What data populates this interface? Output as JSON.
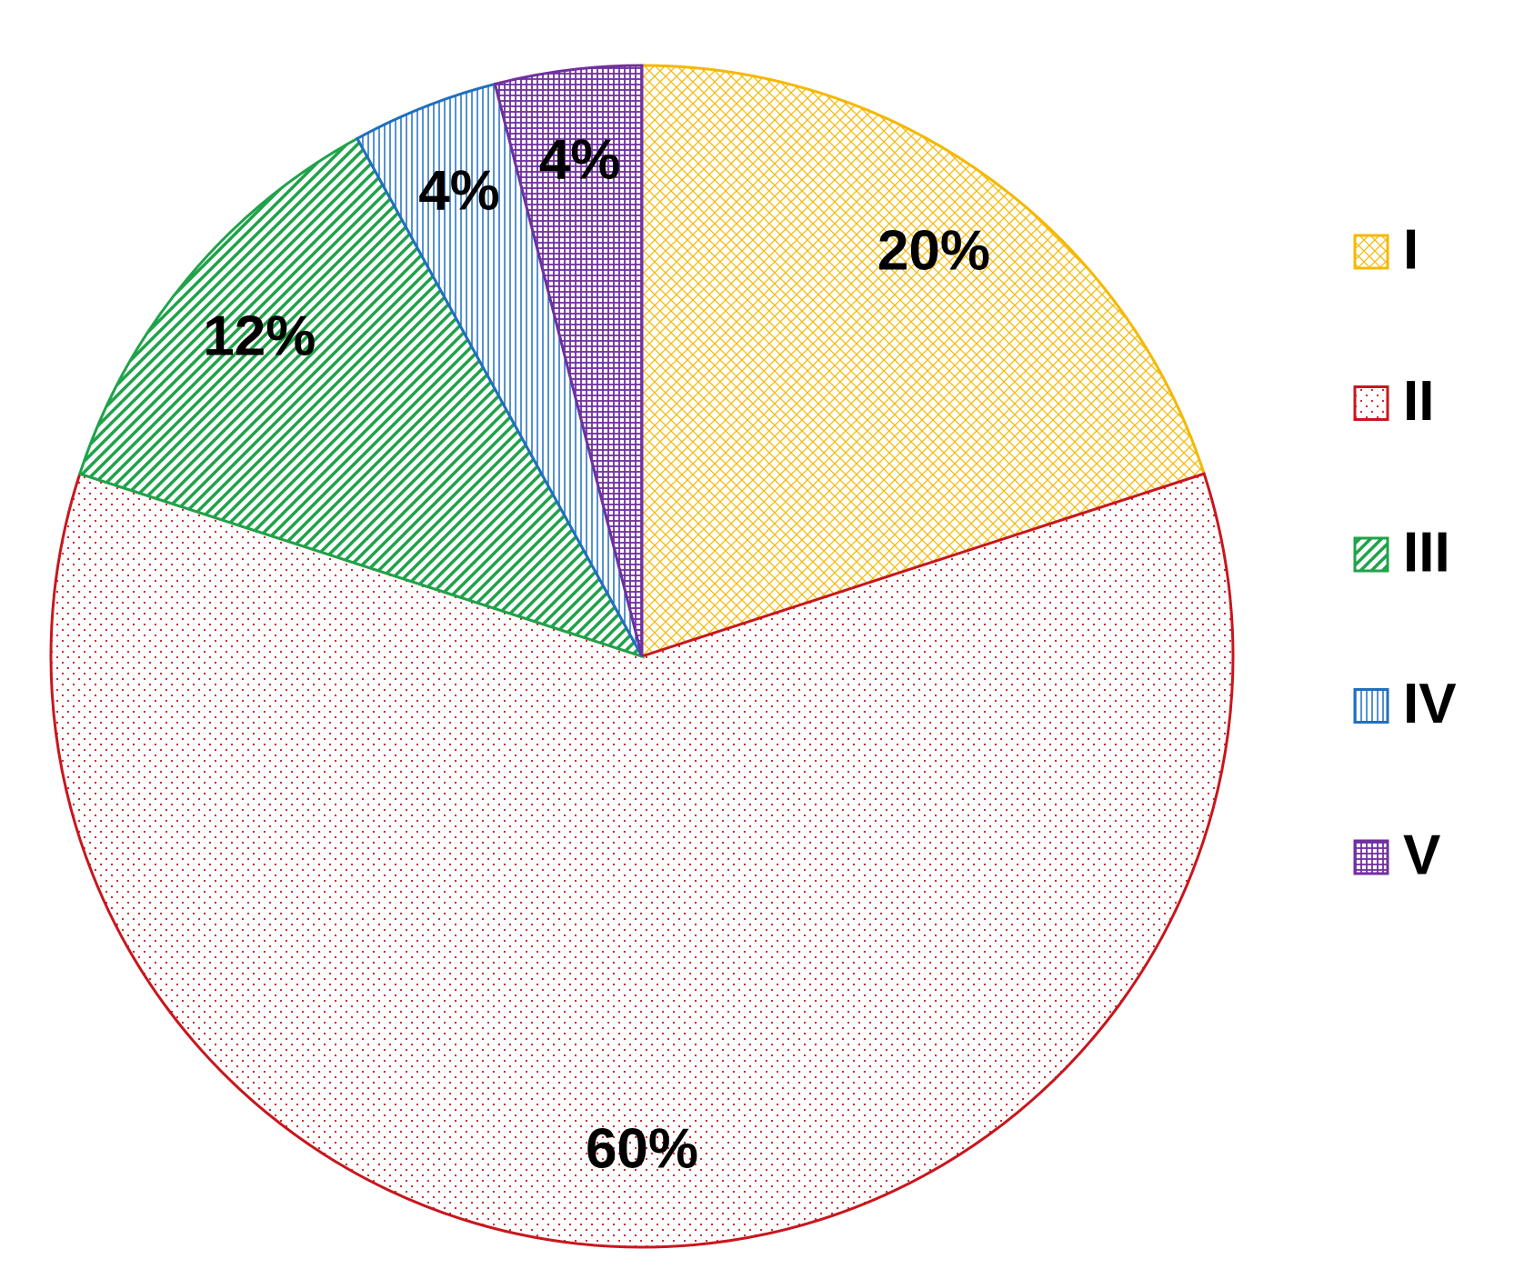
{
  "chart_data": {
    "type": "pie",
    "categories": [
      "I",
      "II",
      "III",
      "IV",
      "V"
    ],
    "values": [
      20,
      60,
      12,
      4,
      4
    ],
    "value_labels": [
      "20%",
      "60%",
      "12%",
      "4%",
      "4%"
    ],
    "colors": [
      "#f5b800",
      "#c8161d",
      "#1fa34a",
      "#1f6fbf",
      "#7030a0"
    ],
    "legend": "right"
  }
}
